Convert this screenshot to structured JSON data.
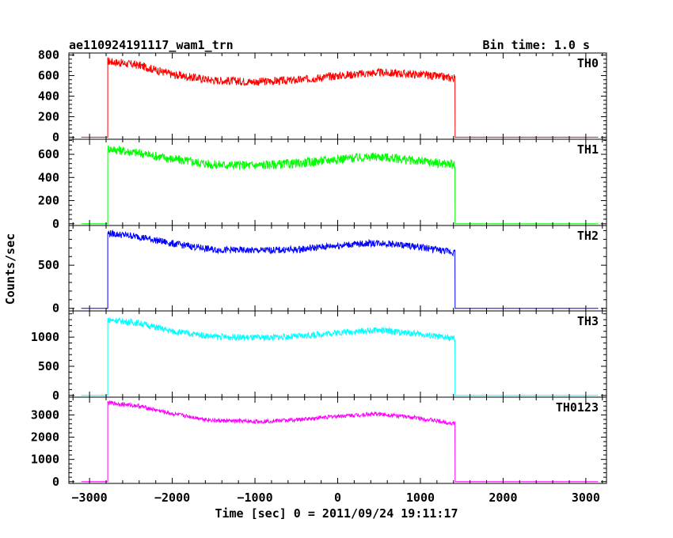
{
  "chart_data": {
    "type": "line",
    "title": "ae110924191117_wam1_trn",
    "subtitle": "Bin time: 1.0 s",
    "xlabel": "Time [sec] 0 = 2011/09/24 19:11:17",
    "ylabel": "Counts/sec",
    "xlim": [
      -3250,
      3250
    ],
    "x_ticks": [
      -3000,
      -2000,
      -1000,
      0,
      1000,
      2000,
      3000
    ],
    "x_tick_labels": [
      "−3000",
      "−2000",
      "−1000",
      "0",
      "1000",
      "2000",
      "3000"
    ],
    "data_start": -3100,
    "data_end": 3150,
    "burst_start": -2780,
    "burst_end": 1420,
    "panels": [
      {
        "name": "TH0",
        "color": "#ff0000",
        "ylim": [
          -20,
          820
        ],
        "yticks": [
          0,
          200,
          400,
          600,
          800
        ],
        "noise": 40,
        "points": [
          [
            -2780,
            740
          ],
          [
            -2400,
            700
          ],
          [
            -2000,
            610
          ],
          [
            -1500,
            555
          ],
          [
            -1000,
            540
          ],
          [
            -500,
            555
          ],
          [
            0,
            600
          ],
          [
            500,
            630
          ],
          [
            1000,
            610
          ],
          [
            1400,
            575
          ]
        ]
      },
      {
        "name": "TH1",
        "color": "#00ff00",
        "ylim": [
          -15,
          730
        ],
        "yticks": [
          0,
          200,
          400,
          600
        ],
        "noise": 40,
        "points": [
          [
            -2780,
            650
          ],
          [
            -2400,
            610
          ],
          [
            -2000,
            560
          ],
          [
            -1500,
            510
          ],
          [
            -1000,
            505
          ],
          [
            -500,
            520
          ],
          [
            0,
            560
          ],
          [
            500,
            580
          ],
          [
            1000,
            540
          ],
          [
            1420,
            510
          ]
        ]
      },
      {
        "name": "TH2",
        "color": "#0000ff",
        "ylim": [
          -30,
          960
        ],
        "yticks": [
          0,
          500
        ],
        "noise": 40,
        "points": [
          [
            -2780,
            870
          ],
          [
            -2400,
            830
          ],
          [
            -2000,
            750
          ],
          [
            -1500,
            680
          ],
          [
            -1000,
            670
          ],
          [
            -500,
            680
          ],
          [
            0,
            730
          ],
          [
            500,
            760
          ],
          [
            1000,
            710
          ],
          [
            1400,
            650
          ]
        ]
      },
      {
        "name": "TH3",
        "color": "#00ffff",
        "ylim": [
          -30,
          1450
        ],
        "yticks": [
          0,
          500,
          1000
        ],
        "noise": 55,
        "points": [
          [
            -2780,
            1300
          ],
          [
            -2400,
            1240
          ],
          [
            -2000,
            1100
          ],
          [
            -1500,
            1010
          ],
          [
            -1000,
            990
          ],
          [
            -500,
            1010
          ],
          [
            0,
            1080
          ],
          [
            500,
            1120
          ],
          [
            1000,
            1050
          ],
          [
            1420,
            970
          ]
        ]
      },
      {
        "name": "TH0123",
        "color": "#ff00ff",
        "ylim": [
          -80,
          3800
        ],
        "yticks": [
          0,
          1000,
          2000,
          3000
        ],
        "noise": 90,
        "points": [
          [
            -2780,
            3550
          ],
          [
            -2400,
            3400
          ],
          [
            -2000,
            3050
          ],
          [
            -1500,
            2750
          ],
          [
            -1000,
            2700
          ],
          [
            -500,
            2780
          ],
          [
            0,
            2950
          ],
          [
            500,
            3050
          ],
          [
            1000,
            2850
          ],
          [
            1420,
            2600
          ]
        ]
      }
    ]
  }
}
